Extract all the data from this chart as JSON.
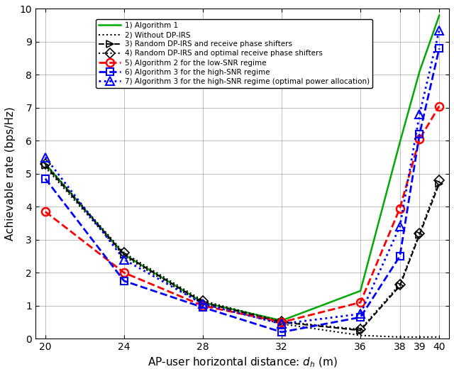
{
  "x": [
    20,
    24,
    28,
    32,
    36,
    38,
    39,
    40
  ],
  "series": {
    "alg1": [
      5.3,
      2.55,
      1.1,
      0.55,
      1.45,
      5.95,
      8.1,
      9.8
    ],
    "no_irs": [
      5.2,
      2.5,
      1.05,
      0.45,
      0.1,
      0.05,
      0.05,
      0.05
    ],
    "rand_dp_recv": [
      5.25,
      2.55,
      1.1,
      0.5,
      0.25,
      1.6,
      3.15,
      4.7
    ],
    "rand_dp_opt": [
      5.3,
      2.6,
      1.15,
      0.52,
      0.28,
      1.65,
      3.2,
      4.8
    ],
    "alg2_low": [
      3.85,
      2.0,
      1.0,
      0.5,
      1.1,
      3.95,
      6.05,
      7.05
    ],
    "alg3_high": [
      4.85,
      1.75,
      0.95,
      0.2,
      0.65,
      2.5,
      6.2,
      8.8
    ],
    "alg3_high_opt": [
      5.5,
      2.4,
      1.05,
      0.45,
      0.75,
      3.4,
      6.8,
      9.35
    ]
  },
  "colors": {
    "alg1": "#00aa00",
    "no_irs": "#000000",
    "rand_dp_recv": "#000000",
    "rand_dp_opt": "#000000",
    "alg2_low": "#ff0000",
    "alg3_high": "#0000ff",
    "alg3_high_opt": "#0000ff"
  },
  "xlim": [
    19.5,
    40.5
  ],
  "ylim": [
    0,
    10
  ],
  "xticks": [
    20,
    24,
    28,
    32,
    36,
    38,
    39,
    40
  ],
  "yticks": [
    0,
    1,
    2,
    3,
    4,
    5,
    6,
    7,
    8,
    9,
    10
  ],
  "xlabel": "AP-user horizontal distance: $d_h$ (m)",
  "ylabel": "Achievable rate (bps/Hz)",
  "legend_labels": [
    "1) Algorithm 1",
    "2) Without DP-IRS",
    "3) Random DP-IRS and receive phase shifters",
    "4) Random DP-IRS and optimal receive phase shifters",
    "5) Algorithm 2 for the low-SNR regime",
    "6) Algorithm 3 for the high-SNR regime",
    "7) Algorithm 3 for the high-SNR regime (optimal power allocation)"
  ],
  "figsize": [
    6.4,
    5.27
  ],
  "dpi": 100
}
